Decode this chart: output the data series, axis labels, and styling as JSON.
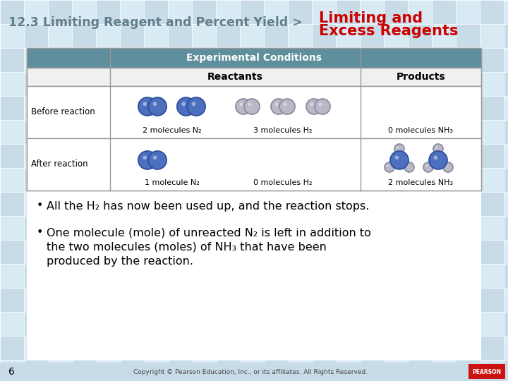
{
  "header_left": "12.3 Limiting Reagent and Percent Yield >",
  "header_right_line1": "Limiting and",
  "header_right_line2": "Excess Reagents",
  "header_left_color": "#607d8b",
  "header_right_color": "#cc0000",
  "bg_tile1": "#c8dce8",
  "bg_tile2": "#d8eaf4",
  "bg_base": "#d0e6f2",
  "white_bg": "#ffffff",
  "table_header_bg": "#5f8f9c",
  "table_subrow_bg": "#e8f2f8",
  "table_border_color": "#999999",
  "table_title": "Experimental Conditions",
  "col1_header": "Reactants",
  "col2_header": "Products",
  "row1_label": "Before reaction",
  "row2_label": "After reaction",
  "before_n2_label": "2 molecules N₂",
  "before_h2_label": "3 molecules H₂",
  "before_nh3_label": "0 molecules NH₃",
  "after_n2_label": "1 molecule N₂",
  "after_h2_label": "0 molecules H₂",
  "after_nh3_label": "2 molecules NH₃",
  "bullet1": "All the H₂ has now been used up, and the reaction stops.",
  "bullet2_line1": "One molecule (mole) of unreacted N₂ is left in addition to",
  "bullet2_line2": "the two molecules (moles) of NH₃ that have been",
  "bullet2_line3": "produced by the reaction.",
  "footer_number": "6",
  "footer_text": "Copyright © Pearson Education, Inc., or its affiliates. All Rights Reserved.",
  "blue_mol_face": "#4c6fbe",
  "blue_mol_edge": "#2a4a9a",
  "grey_mol_face": "#b8b8c8",
  "grey_mol_edge": "#888898",
  "nh3_n_face": "#4c6fbe",
  "nh3_n_edge": "#2a4a9a",
  "nh3_h_face": "#b8b8c8",
  "nh3_h_edge": "#888898"
}
